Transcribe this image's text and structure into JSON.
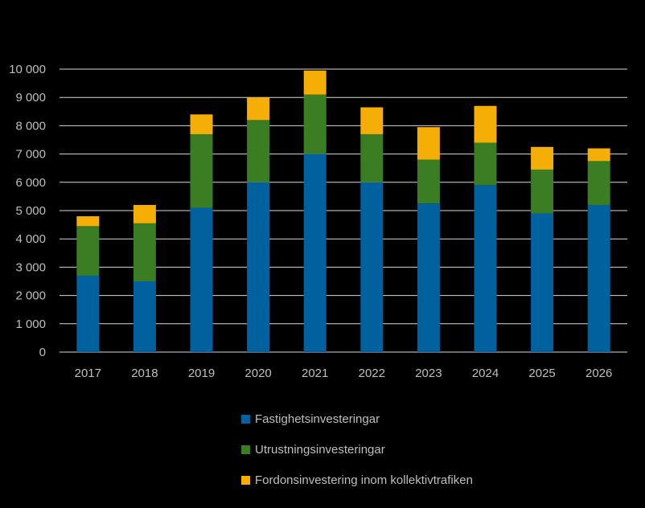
{
  "chart_data": {
    "type": "bar",
    "stacked": true,
    "categories": [
      "2017",
      "2018",
      "2019",
      "2020",
      "2021",
      "2022",
      "2023",
      "2024",
      "2025",
      "2026"
    ],
    "series": [
      {
        "name": "Fastighetsinvesteringar",
        "color": "#01619e",
        "values": [
          2700,
          2500,
          5100,
          6000,
          7000,
          6000,
          5250,
          5900,
          4900,
          5200
        ]
      },
      {
        "name": "Utrustningsinvesteringar",
        "color": "#3b7d23",
        "values": [
          1750,
          2050,
          2600,
          2200,
          2100,
          1700,
          1550,
          1500,
          1550,
          1550
        ]
      },
      {
        "name": "Fordonsinvestering inom kollektivtrafiken",
        "color": "#f5ae05",
        "values": [
          350,
          650,
          700,
          800,
          850,
          950,
          1150,
          1300,
          800,
          450
        ]
      }
    ],
    "ylim": [
      0,
      10000
    ],
    "yticks": [
      0,
      1000,
      2000,
      3000,
      4000,
      5000,
      6000,
      7000,
      8000,
      9000,
      10000
    ],
    "ytick_labels": [
      "0",
      "1 000",
      "2 000",
      "3 000",
      "4 000",
      "5 000",
      "6 000",
      "7 000",
      "8 000",
      "9 000",
      "10 000"
    ],
    "grid": true,
    "legend_position": "bottom",
    "title": "",
    "xlabel": "",
    "ylabel": ""
  }
}
